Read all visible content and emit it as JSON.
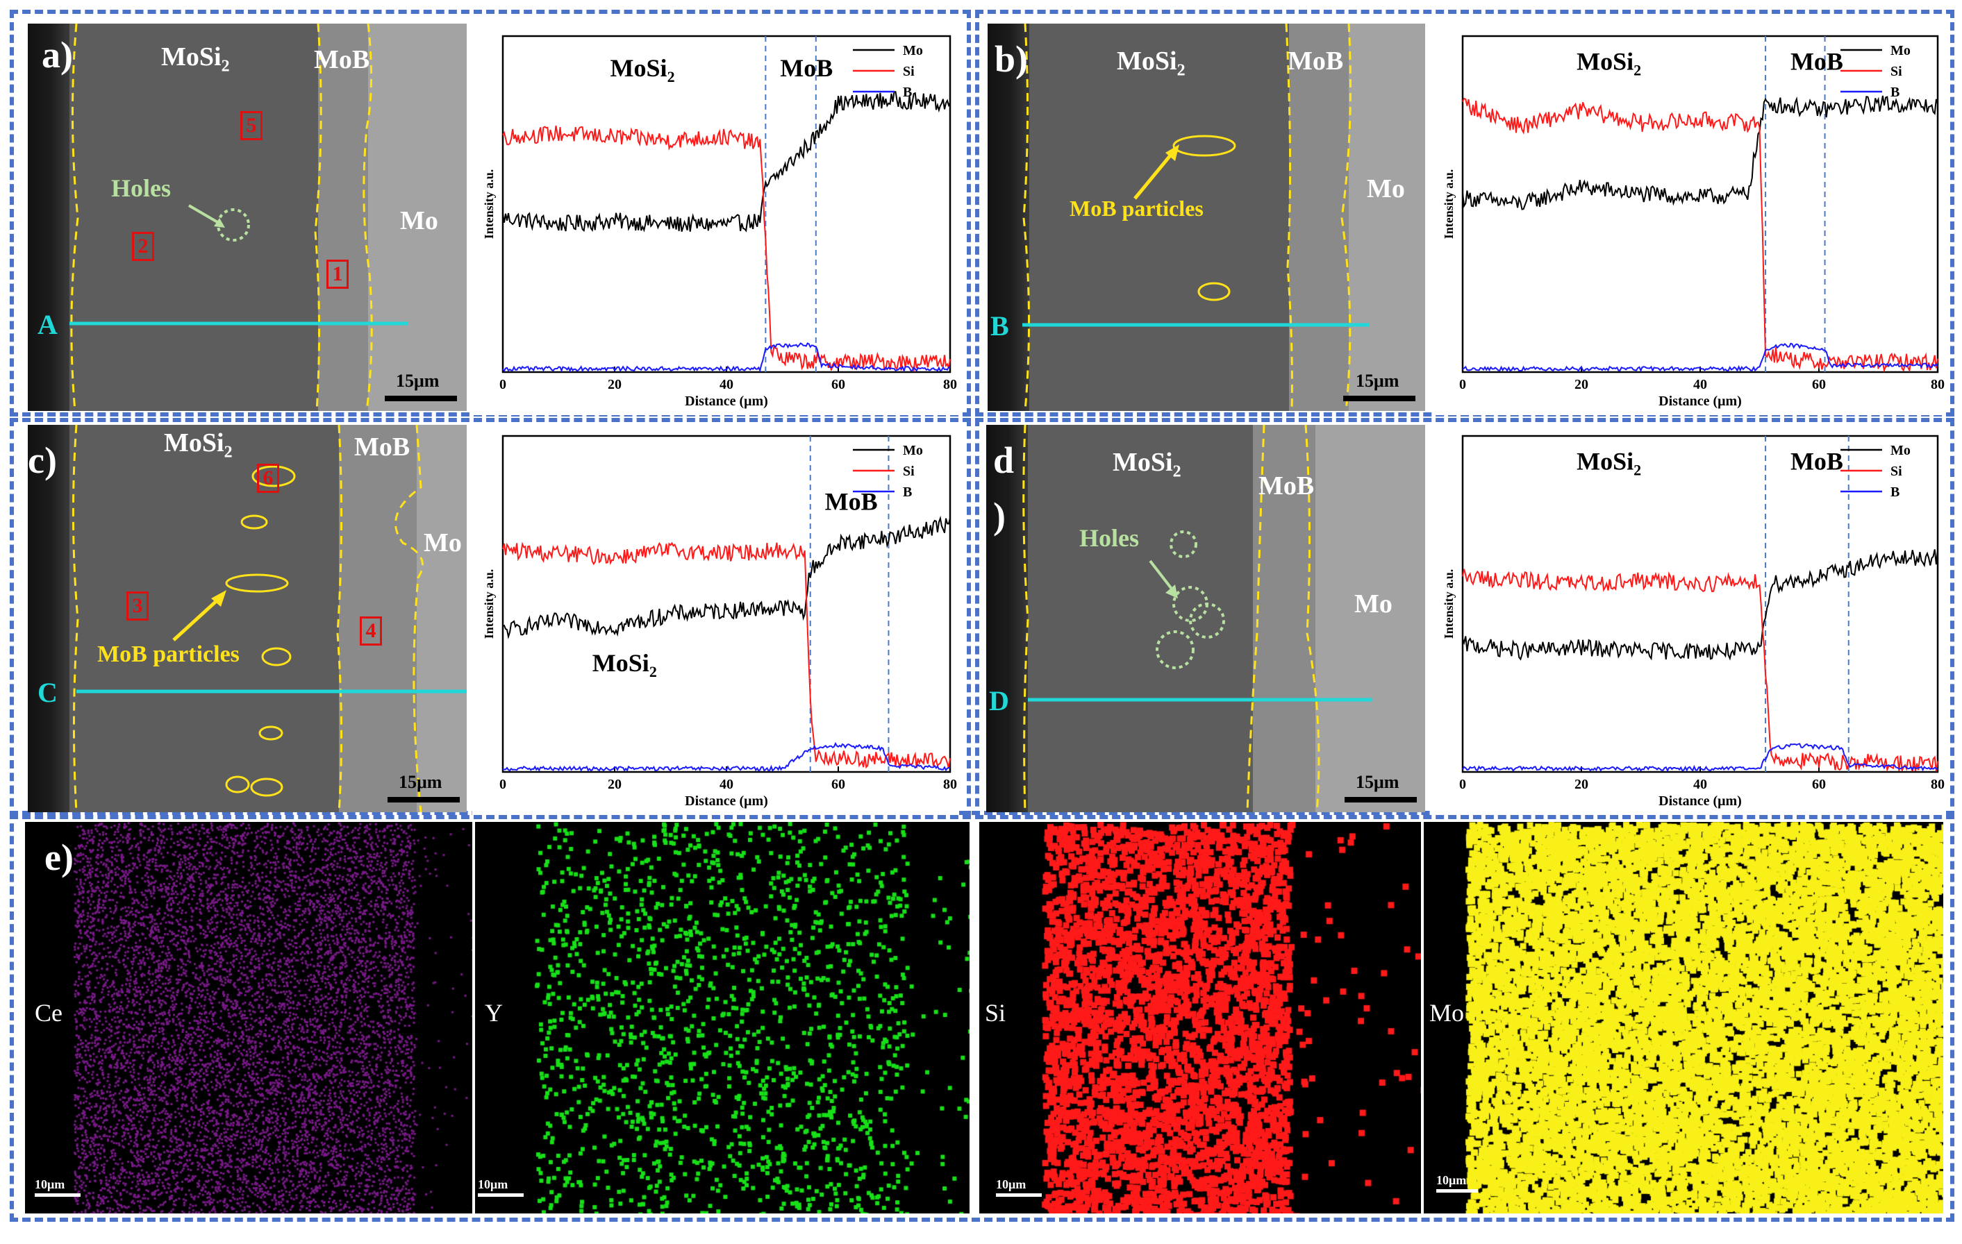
{
  "colors": {
    "frame": "#4a72c8",
    "mo": "#000000",
    "si": "#ff1a1a",
    "b": "#1a1aff",
    "scan": "#20d8d8",
    "boundary": "#ffe21a",
    "marker": "#e01010",
    "holes": "#b8e0a0"
  },
  "panels": {
    "a": {
      "letter": "a)",
      "scan_letter": "A",
      "mosi2": "MoSi",
      "mosi2_sub": "2",
      "mob": "MoB",
      "mo": "Mo",
      "holes": "Holes",
      "markers": [
        "5",
        "2",
        "1"
      ],
      "scale": "15μm"
    },
    "b": {
      "letter": "b)",
      "scan_letter": "B",
      "mosi2": "MoSi",
      "mosi2_sub": "2",
      "mob": "MoB",
      "mo": "Mo",
      "particles": "MoB particles",
      "scale": "15μm"
    },
    "c": {
      "letter": "c)",
      "scan_letter": "C",
      "mosi2": "MoSi",
      "mosi2_sub": "2",
      "mob": "MoB",
      "mo": "Mo",
      "particles": "MoB particles",
      "markers": [
        "6",
        "3",
        "4"
      ],
      "scale": "15μm"
    },
    "d": {
      "letter": "d",
      "letter2": ")",
      "scan_letter": "D",
      "mosi2": "MoSi",
      "mosi2_sub": "2",
      "mob": "MoB",
      "mo": "Mo",
      "holes": "Holes",
      "scale": "15μm"
    },
    "e": {
      "letter": "e)"
    }
  },
  "chart_data": [
    {
      "type": "line",
      "panel": "a",
      "xlabel": "Distance (μm)",
      "ylabel": "Intensity a.u.",
      "xlim": [
        0,
        80
      ],
      "xticks": [
        0,
        20,
        40,
        60,
        80
      ],
      "ylim": [
        0,
        1
      ],
      "legend": [
        "Mo",
        "Si",
        "B"
      ],
      "legend_position": "top-right",
      "annotations": [
        "MoSi2",
        "MoB"
      ],
      "boundaries": [
        47,
        56
      ],
      "series": [
        {
          "name": "Mo",
          "x": [
            0,
            10,
            20,
            30,
            40,
            46,
            47,
            50,
            56,
            60,
            70,
            80
          ],
          "y": [
            0.46,
            0.44,
            0.45,
            0.44,
            0.44,
            0.45,
            0.55,
            0.6,
            0.7,
            0.8,
            0.81,
            0.8
          ]
        },
        {
          "name": "Si",
          "x": [
            0,
            10,
            20,
            30,
            40,
            46,
            47,
            48,
            50,
            56,
            60,
            80
          ],
          "y": [
            0.7,
            0.71,
            0.7,
            0.69,
            0.7,
            0.68,
            0.4,
            0.07,
            0.04,
            0.03,
            0.03,
            0.03
          ]
        },
        {
          "name": "B",
          "x": [
            0,
            10,
            20,
            30,
            40,
            46,
            47,
            50,
            56,
            57,
            70,
            80
          ],
          "y": [
            0.01,
            0.01,
            0.01,
            0.01,
            0.01,
            0.01,
            0.07,
            0.08,
            0.08,
            0.02,
            0.01,
            0.01
          ]
        }
      ]
    },
    {
      "type": "line",
      "panel": "b",
      "xlabel": "Distance (μm)",
      "ylabel": "Intensity a.u.",
      "xlim": [
        0,
        80
      ],
      "xticks": [
        0,
        20,
        40,
        60,
        80
      ],
      "ylim": [
        0,
        1
      ],
      "legend": [
        "Mo",
        "Si",
        "B"
      ],
      "legend_position": "top-right",
      "annotations": [
        "MoSi2",
        "MoB"
      ],
      "boundaries": [
        51,
        61
      ],
      "series": [
        {
          "name": "Mo",
          "x": [
            0,
            10,
            20,
            30,
            40,
            48,
            50,
            51,
            60,
            70,
            80
          ],
          "y": [
            0.52,
            0.5,
            0.55,
            0.53,
            0.52,
            0.53,
            0.72,
            0.8,
            0.78,
            0.8,
            0.79
          ]
        },
        {
          "name": "Si",
          "x": [
            0,
            10,
            20,
            30,
            40,
            50,
            50.5,
            51,
            55,
            60,
            80
          ],
          "y": [
            0.8,
            0.73,
            0.78,
            0.74,
            0.75,
            0.74,
            0.4,
            0.06,
            0.04,
            0.03,
            0.03
          ]
        },
        {
          "name": "B",
          "x": [
            0,
            10,
            20,
            30,
            40,
            50,
            51,
            55,
            61,
            62,
            80
          ],
          "y": [
            0.01,
            0.01,
            0.01,
            0.01,
            0.01,
            0.01,
            0.07,
            0.08,
            0.07,
            0.02,
            0.02
          ]
        }
      ]
    },
    {
      "type": "line",
      "panel": "c",
      "xlabel": "Distance (μm)",
      "ylabel": "Intensity a.u.",
      "xlim": [
        0,
        80
      ],
      "xticks": [
        0,
        20,
        40,
        60,
        80
      ],
      "ylim": [
        0,
        1
      ],
      "legend": [
        "Mo",
        "Si",
        "B"
      ],
      "legend_position": "top-right",
      "annotations": [
        "MoB",
        "MoSi2"
      ],
      "boundaries": [
        55,
        69
      ],
      "series": [
        {
          "name": "Mo",
          "x": [
            0,
            10,
            20,
            30,
            40,
            50,
            54,
            55,
            60,
            70,
            80
          ],
          "y": [
            0.42,
            0.45,
            0.43,
            0.47,
            0.48,
            0.49,
            0.48,
            0.6,
            0.68,
            0.7,
            0.74
          ]
        },
        {
          "name": "Si",
          "x": [
            0,
            10,
            20,
            30,
            40,
            50,
            54,
            55,
            56,
            60,
            80
          ],
          "y": [
            0.66,
            0.65,
            0.64,
            0.66,
            0.65,
            0.66,
            0.65,
            0.2,
            0.05,
            0.04,
            0.03
          ]
        },
        {
          "name": "B",
          "x": [
            0,
            10,
            20,
            30,
            40,
            50,
            55,
            60,
            68,
            69,
            80
          ],
          "y": [
            0.01,
            0.01,
            0.01,
            0.01,
            0.01,
            0.01,
            0.07,
            0.08,
            0.07,
            0.02,
            0.01
          ]
        }
      ]
    },
    {
      "type": "line",
      "panel": "d",
      "xlabel": "Distance (μm)",
      "ylabel": "Intensity a.u.",
      "xlim": [
        0,
        80
      ],
      "xticks": [
        0,
        20,
        40,
        60,
        80
      ],
      "ylim": [
        0,
        1
      ],
      "legend": [
        "Mo",
        "Si",
        "B"
      ],
      "legend_position": "top-right",
      "annotations": [
        "MoSi2",
        "MoB"
      ],
      "boundaries": [
        51,
        65
      ],
      "series": [
        {
          "name": "Mo",
          "x": [
            0,
            10,
            20,
            30,
            40,
            50,
            51,
            52,
            60,
            70,
            80
          ],
          "y": [
            0.38,
            0.36,
            0.37,
            0.36,
            0.36,
            0.36,
            0.48,
            0.56,
            0.58,
            0.63,
            0.64
          ]
        },
        {
          "name": "Si",
          "x": [
            0,
            10,
            20,
            30,
            40,
            50,
            51,
            52,
            60,
            70,
            80
          ],
          "y": [
            0.58,
            0.57,
            0.56,
            0.57,
            0.56,
            0.57,
            0.3,
            0.04,
            0.03,
            0.03,
            0.02
          ]
        },
        {
          "name": "B",
          "x": [
            0,
            10,
            20,
            30,
            40,
            50,
            52,
            56,
            64,
            65,
            80
          ],
          "y": [
            0.01,
            0.01,
            0.01,
            0.01,
            0.01,
            0.01,
            0.07,
            0.08,
            0.07,
            0.02,
            0.01
          ]
        }
      ]
    }
  ],
  "maps": [
    {
      "label": "Ce",
      "scale": "10μm",
      "color": "#7a1a8a"
    },
    {
      "label": "Y",
      "scale": "10μm",
      "color": "#18e018"
    },
    {
      "label": "Si",
      "scale": "10μm",
      "color": "#ff1a1a"
    },
    {
      "label": "Mo",
      "scale": "10μm",
      "color": "#f8f018"
    }
  ]
}
